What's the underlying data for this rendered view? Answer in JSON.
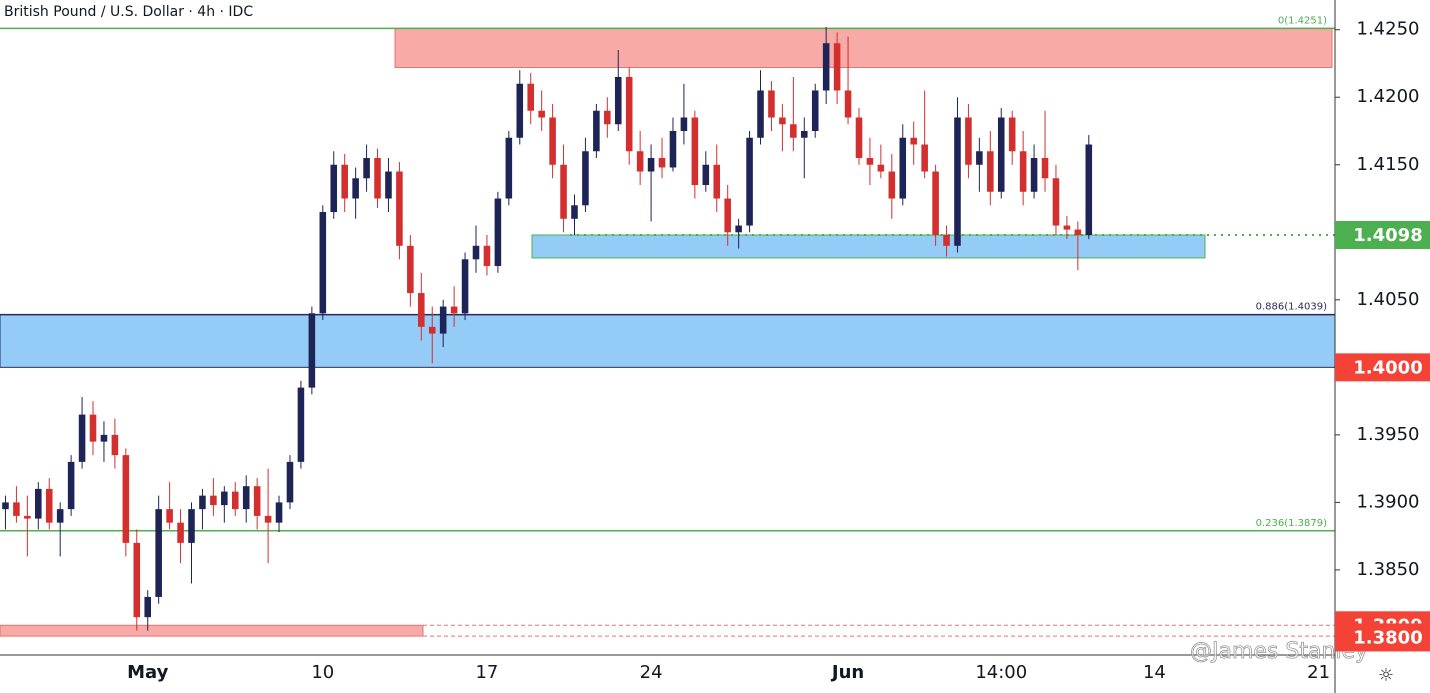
{
  "chart_data": {
    "type": "candlestick",
    "title": "British Pound / U.S. Dollar · 4h · IDC",
    "watermark": "@James Stanley",
    "up_color": "#1e2455",
    "down_color": "#d32f2f",
    "ylim": [
      1.3787,
      1.4272
    ],
    "yticks": [
      {
        "value": 1.38,
        "label": "1.3800"
      },
      {
        "value": 1.385,
        "label": "1.3850"
      },
      {
        "value": 1.39,
        "label": "1.3900"
      },
      {
        "value": 1.395,
        "label": "1.3950"
      },
      {
        "value": 1.4,
        "label": "1.4000"
      },
      {
        "value": 1.405,
        "label": "1.4050"
      },
      {
        "value": 1.41,
        "label": "1.4100"
      },
      {
        "value": 1.415,
        "label": "1.4150"
      },
      {
        "value": 1.42,
        "label": "1.4200"
      },
      {
        "value": 1.425,
        "label": "1.4250"
      }
    ],
    "categories": [
      null,
      null,
      null,
      null,
      null,
      null,
      null,
      null,
      null,
      null,
      null,
      null,
      null,
      "May",
      null,
      null,
      null,
      null,
      null,
      null,
      null,
      null,
      null,
      null,
      null,
      null,
      null,
      null,
      null,
      "10",
      null,
      null,
      null,
      null,
      null,
      null,
      null,
      null,
      null,
      null,
      null,
      null,
      null,
      null,
      "17",
      null,
      null,
      null,
      null,
      null,
      null,
      null,
      null,
      null,
      null,
      null,
      null,
      null,
      null,
      "24",
      null,
      null,
      null,
      null,
      null,
      null,
      null,
      null,
      null,
      null,
      null,
      null,
      null,
      null,
      null,
      null,
      null,
      "Jun",
      null,
      null,
      null,
      null,
      null,
      null,
      null,
      null,
      null,
      null,
      null,
      null,
      null,
      "14:00",
      null,
      null,
      null,
      null,
      null,
      null,
      null,
      null,
      null,
      null,
      null,
      null,
      null,
      "14",
      null,
      null,
      null,
      null,
      null,
      null,
      null,
      null,
      null,
      null,
      null,
      null,
      null,
      null,
      "21",
      null
    ],
    "candles": [
      [
        1.3895,
        1.3905,
        1.388,
        1.39
      ],
      [
        1.39,
        1.3912,
        1.3885,
        1.389
      ],
      [
        1.389,
        1.3905,
        1.386,
        1.3888
      ],
      [
        1.3888,
        1.3915,
        1.388,
        1.391
      ],
      [
        1.391,
        1.3918,
        1.388,
        1.3885
      ],
      [
        1.3885,
        1.39,
        1.386,
        1.3895
      ],
      [
        1.3895,
        1.3935,
        1.389,
        1.393
      ],
      [
        1.393,
        1.3978,
        1.3925,
        1.3965
      ],
      [
        1.3965,
        1.3975,
        1.3935,
        1.3945
      ],
      [
        1.3945,
        1.396,
        1.393,
        1.395
      ],
      [
        1.395,
        1.3962,
        1.3925,
        1.3935
      ],
      [
        1.3935,
        1.394,
        1.386,
        1.387
      ],
      [
        1.387,
        1.388,
        1.3805,
        1.3815
      ],
      [
        1.3815,
        1.3835,
        1.3805,
        1.383
      ],
      [
        1.383,
        1.3905,
        1.3825,
        1.3895
      ],
      [
        1.3895,
        1.3915,
        1.388,
        1.3885
      ],
      [
        1.3885,
        1.3895,
        1.3855,
        1.387
      ],
      [
        1.387,
        1.39,
        1.384,
        1.3895
      ],
      [
        1.3895,
        1.391,
        1.388,
        1.3905
      ],
      [
        1.3905,
        1.3918,
        1.389,
        1.3898
      ],
      [
        1.3898,
        1.3912,
        1.3885,
        1.3908
      ],
      [
        1.3908,
        1.3915,
        1.389,
        1.3895
      ],
      [
        1.3895,
        1.392,
        1.3885,
        1.3912
      ],
      [
        1.3912,
        1.3918,
        1.388,
        1.389
      ],
      [
        1.389,
        1.3925,
        1.3855,
        1.3885
      ],
      [
        1.3885,
        1.3905,
        1.3878,
        1.39
      ],
      [
        1.39,
        1.3935,
        1.3895,
        1.393
      ],
      [
        1.393,
        1.399,
        1.3925,
        1.3985
      ],
      [
        1.3985,
        1.4045,
        1.398,
        1.404
      ],
      [
        1.404,
        1.412,
        1.4035,
        1.4115
      ],
      [
        1.4115,
        1.416,
        1.411,
        1.415
      ],
      [
        1.415,
        1.4158,
        1.4115,
        1.4125
      ],
      [
        1.4125,
        1.4148,
        1.411,
        1.414
      ],
      [
        1.414,
        1.4165,
        1.413,
        1.4155
      ],
      [
        1.4155,
        1.4162,
        1.4118,
        1.4125
      ],
      [
        1.4125,
        1.4155,
        1.4115,
        1.4145
      ],
      [
        1.4145,
        1.4152,
        1.408,
        1.409
      ],
      [
        1.409,
        1.4098,
        1.4045,
        1.4055
      ],
      [
        1.4055,
        1.407,
        1.402,
        1.403
      ],
      [
        1.403,
        1.4045,
        1.4003,
        1.4025
      ],
      [
        1.4025,
        1.405,
        1.4015,
        1.4045
      ],
      [
        1.4045,
        1.406,
        1.403,
        1.404
      ],
      [
        1.404,
        1.4085,
        1.4035,
        1.408
      ],
      [
        1.408,
        1.4105,
        1.407,
        1.409
      ],
      [
        1.409,
        1.4098,
        1.4068,
        1.4075
      ],
      [
        1.4075,
        1.413,
        1.407,
        1.4125
      ],
      [
        1.4125,
        1.4175,
        1.412,
        1.417
      ],
      [
        1.417,
        1.422,
        1.4165,
        1.421
      ],
      [
        1.421,
        1.4218,
        1.418,
        1.419
      ],
      [
        1.419,
        1.4205,
        1.4175,
        1.4185
      ],
      [
        1.4185,
        1.4195,
        1.414,
        1.415
      ],
      [
        1.415,
        1.4165,
        1.41,
        1.411
      ],
      [
        1.411,
        1.4128,
        1.4098,
        1.412
      ],
      [
        1.412,
        1.417,
        1.4115,
        1.416
      ],
      [
        1.416,
        1.4195,
        1.4155,
        1.419
      ],
      [
        1.419,
        1.42,
        1.417,
        1.418
      ],
      [
        1.418,
        1.4235,
        1.4175,
        1.4215
      ],
      [
        1.4215,
        1.4222,
        1.415,
        1.416
      ],
      [
        1.416,
        1.4175,
        1.4135,
        1.4145
      ],
      [
        1.4145,
        1.4165,
        1.4108,
        1.4155
      ],
      [
        1.4155,
        1.417,
        1.414,
        1.4148
      ],
      [
        1.4148,
        1.4185,
        1.4145,
        1.4175
      ],
      [
        1.4175,
        1.421,
        1.4165,
        1.4185
      ],
      [
        1.4185,
        1.419,
        1.4125,
        1.4135
      ],
      [
        1.4135,
        1.416,
        1.413,
        1.415
      ],
      [
        1.415,
        1.4165,
        1.4115,
        1.4125
      ],
      [
        1.4125,
        1.4135,
        1.409,
        1.41
      ],
      [
        1.41,
        1.411,
        1.4088,
        1.4105
      ],
      [
        1.4105,
        1.4175,
        1.41,
        1.417
      ],
      [
        1.417,
        1.422,
        1.4165,
        1.4205
      ],
      [
        1.4205,
        1.4212,
        1.4175,
        1.4185
      ],
      [
        1.4185,
        1.4195,
        1.416,
        1.418
      ],
      [
        1.418,
        1.4215,
        1.416,
        1.417
      ],
      [
        1.417,
        1.4185,
        1.414,
        1.4175
      ],
      [
        1.4175,
        1.421,
        1.417,
        1.4205
      ],
      [
        1.4205,
        1.4252,
        1.4195,
        1.424
      ],
      [
        1.424,
        1.4248,
        1.4195,
        1.4205
      ],
      [
        1.4205,
        1.4245,
        1.418,
        1.4185
      ],
      [
        1.4185,
        1.4192,
        1.415,
        1.4155
      ],
      [
        1.4155,
        1.417,
        1.4135,
        1.415
      ],
      [
        1.415,
        1.4165,
        1.414,
        1.4145
      ],
      [
        1.4145,
        1.4158,
        1.411,
        1.4125
      ],
      [
        1.4125,
        1.418,
        1.412,
        1.417
      ],
      [
        1.417,
        1.4182,
        1.415,
        1.4165
      ],
      [
        1.4165,
        1.4205,
        1.414,
        1.4145
      ],
      [
        1.4145,
        1.415,
        1.409,
        1.4098
      ],
      [
        1.4098,
        1.4105,
        1.4082,
        1.409
      ],
      [
        1.409,
        1.42,
        1.4085,
        1.4185
      ],
      [
        1.4185,
        1.4195,
        1.414,
        1.415
      ],
      [
        1.415,
        1.417,
        1.413,
        1.416
      ],
      [
        1.416,
        1.4175,
        1.412,
        1.413
      ],
      [
        1.413,
        1.4192,
        1.4125,
        1.4185
      ],
      [
        1.4185,
        1.419,
        1.415,
        1.416
      ],
      [
        1.416,
        1.4175,
        1.412,
        1.413
      ],
      [
        1.413,
        1.4165,
        1.4125,
        1.4155
      ],
      [
        1.4155,
        1.419,
        1.413,
        1.414
      ],
      [
        1.414,
        1.415,
        1.4098,
        1.4105
      ],
      [
        1.4105,
        1.4112,
        1.4095,
        1.4102
      ],
      [
        1.4102,
        1.4108,
        1.4072,
        1.4098
      ],
      [
        1.4098,
        1.4172,
        1.4095,
        1.4165
      ],
      null,
      null,
      null,
      null,
      null,
      null,
      null,
      null,
      null,
      null,
      null,
      null,
      null,
      null,
      null,
      null,
      null,
      null,
      null,
      null,
      null,
      null
    ],
    "zones": [
      {
        "lower": 1.4222,
        "upper": 1.4251,
        "color": "#f8aaa6"
      },
      {
        "lower": 1.4,
        "upper": 1.4039,
        "color": "#94cbf7"
      },
      {
        "lower": 1.4081,
        "upper": 1.4098,
        "color": "#94cbf7"
      },
      {
        "lower": 1.3801,
        "upper": 1.3809,
        "color": "#f8aaa6"
      }
    ],
    "fib_lines": [
      {
        "value": 1.4251,
        "label": "0(1.4251)",
        "color": "#4caf50"
      },
      {
        "value": 1.4039,
        "label": "0.886(1.4039)",
        "color": "#2a2e5a"
      },
      {
        "value": 1.3879,
        "label": "0.236(1.3879)",
        "color": "#4caf50"
      }
    ],
    "levels": [
      {
        "value": 1.4098,
        "color": "#4caf50"
      },
      {
        "value": 1.4,
        "label": "1.4000",
        "color": "#f44336"
      },
      {
        "value": 1.3809,
        "color": "#f44336"
      },
      {
        "value": 1.38,
        "label": "1.3800",
        "color": "#f44336"
      }
    ]
  }
}
